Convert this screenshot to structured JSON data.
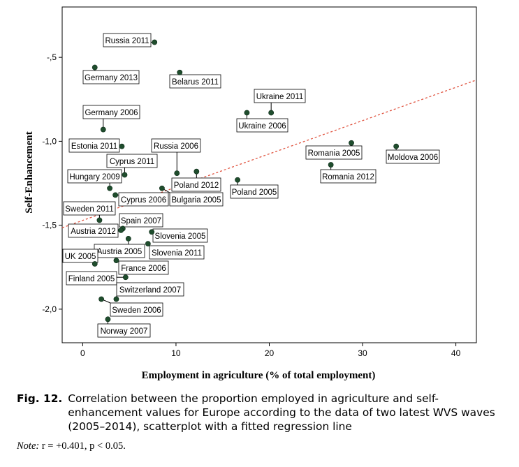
{
  "chart_data": {
    "type": "scatter",
    "xlabel": "Employment in agriculture (% of total employment)",
    "ylabel": "Self-Enhancement",
    "xlim": [
      -2.2,
      42.2
    ],
    "ylim": [
      -2.2,
      -0.2
    ],
    "xticks": [
      "0",
      "10",
      "20",
      "30",
      "40"
    ],
    "yticks": [
      "-,5",
      "-1,0",
      "-1,5",
      "-2,0"
    ],
    "grid": false,
    "point_color": "#1f4d2d",
    "fit_line_color": "#e0533f",
    "fit_line": {
      "x0": -2.2,
      "y0": -1.515,
      "x1": 42.2,
      "y1": -0.635
    },
    "points": [
      {
        "label": "Russia 2011",
        "x": 7.7,
        "y": -0.41
      },
      {
        "label": "Germany 2013",
        "x": 1.3,
        "y": -0.56
      },
      {
        "label": "Belarus 2011",
        "x": 10.4,
        "y": -0.59
      },
      {
        "label": "Ukraine 2011",
        "x": 20.2,
        "y": -0.83
      },
      {
        "label": "Ukraine 2006",
        "x": 17.6,
        "y": -0.83
      },
      {
        "label": "Germany 2006",
        "x": 2.2,
        "y": -0.93
      },
      {
        "label": "Estonia 2011",
        "x": 4.2,
        "y": -1.03
      },
      {
        "label": "Romania 2005",
        "x": 28.8,
        "y": -1.01
      },
      {
        "label": "Moldova 2006",
        "x": 33.6,
        "y": -1.03
      },
      {
        "label": "Russia 2006",
        "x": 10.1,
        "y": -1.19
      },
      {
        "label": "Cyprus 2011",
        "x": 4.5,
        "y": -1.2
      },
      {
        "label": "Romania 2012",
        "x": 26.6,
        "y": -1.14
      },
      {
        "label": "Hungary 2009",
        "x": 2.9,
        "y": -1.28
      },
      {
        "label": "Poland 2012",
        "x": 12.2,
        "y": -1.18
      },
      {
        "label": "Poland 2005",
        "x": 16.6,
        "y": -1.23
      },
      {
        "label": "Bulgaria 2005",
        "x": 8.5,
        "y": -1.28
      },
      {
        "label": "Cyprus 2006",
        "x": 3.5,
        "y": -1.32
      },
      {
        "label": "Sweden 2011",
        "x": 1.8,
        "y": -1.47
      },
      {
        "label": "Spain 2007",
        "x": 4.3,
        "y": -1.52
      },
      {
        "label": "Austria 2012",
        "x": 4.1,
        "y": -1.53
      },
      {
        "label": "Slovenia 2005",
        "x": 7.4,
        "y": -1.54
      },
      {
        "label": "Austria 2005",
        "x": 4.9,
        "y": -1.58
      },
      {
        "label": "Slovenia 2011",
        "x": 7.0,
        "y": -1.61
      },
      {
        "label": "UK 2005",
        "x": 1.3,
        "y": -1.73
      },
      {
        "label": "France 2006",
        "x": 3.6,
        "y": -1.71
      },
      {
        "label": "Finland 2005",
        "x": 4.6,
        "y": -1.81
      },
      {
        "label": "Switzerland 2007",
        "x": 3.6,
        "y": -1.94
      },
      {
        "label": "Sweden 2006",
        "x": 2.0,
        "y": -1.94
      },
      {
        "label": "Norway 2007",
        "x": 2.7,
        "y": -2.06
      }
    ]
  },
  "caption": {
    "label": "Fig. 12.",
    "text": "Correlation between the proportion employed in agriculture and self-enhancement values for Europe according to the data of two latest WVS waves (2005–2014), scatterplot with a fitted regression line"
  },
  "note": {
    "label": "Note:",
    "text": " r = +0.401, p < 0.05."
  }
}
